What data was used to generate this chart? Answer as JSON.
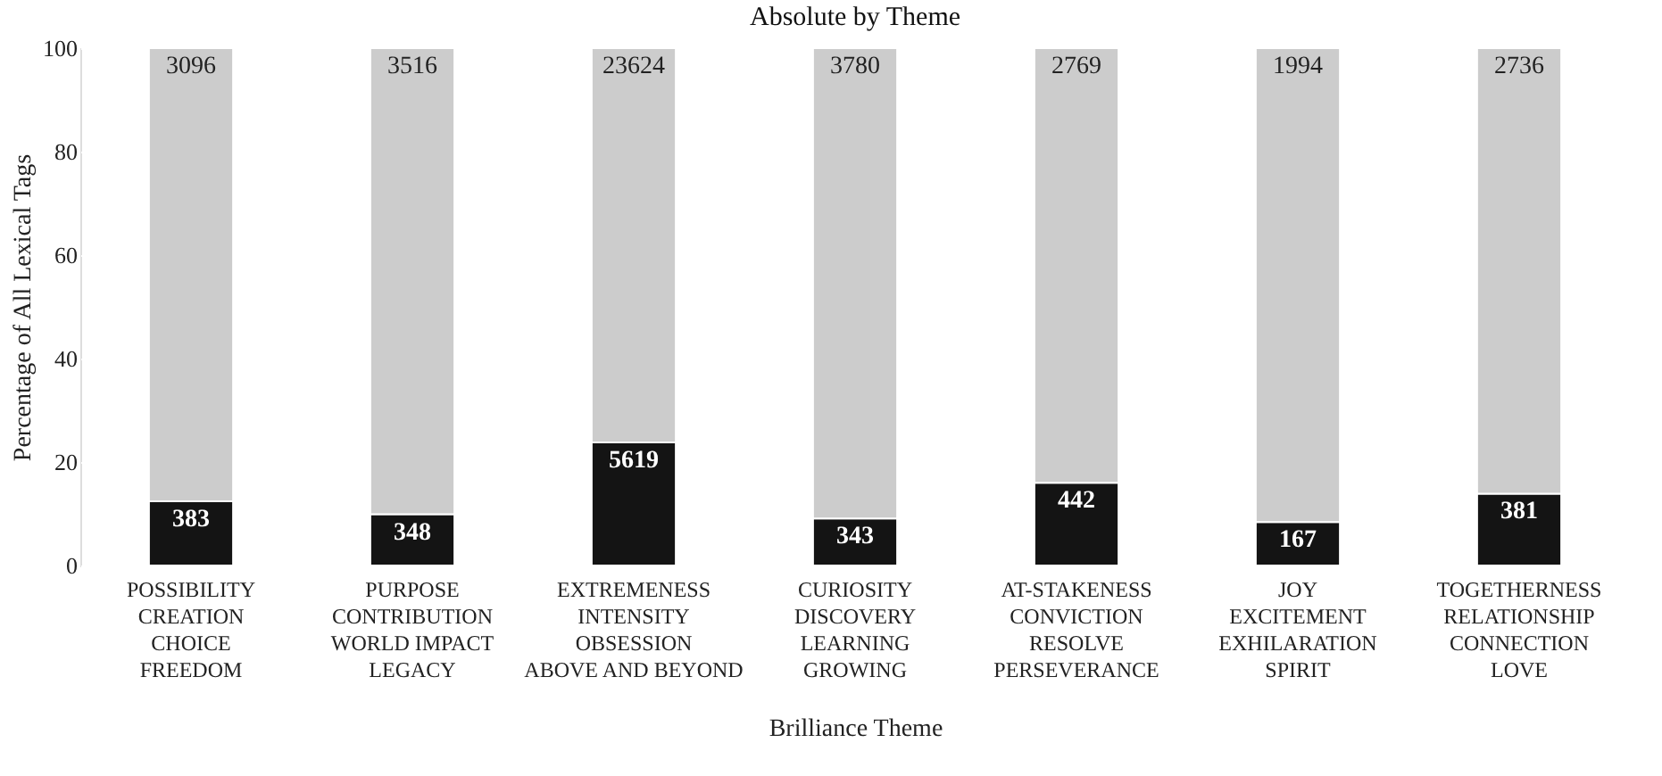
{
  "chart_data": {
    "type": "bar",
    "title": "Absolute by Theme",
    "xlabel": "Brilliance Theme",
    "ylabel": "Percentage of All Lexical Tags",
    "categories": [
      "POSSIBILITY\nCREATION\nCHOICE\nFREEDOM",
      "PURPOSE\nCONTRIBUTION\nWORLD IMPACT\nLEGACY",
      "EXTREMENESS\nINTENSITY\nOBSESSION\nABOVE AND BEYOND",
      "CURIOSITY\nDISCOVERY\nLEARNING\nGROWING",
      "AT-STAKENESS\nCONVICTION\nRESOLVE\nPERSEVERANCE",
      "JOY\nEXCITEMENT\nEXHILARATION\nSPIRIT",
      "TOGETHERNESS\nRELATIONSHIP\nCONNECTION\nLOVE"
    ],
    "stacked": true,
    "series": [
      {
        "color": "#141414",
        "values": [
          12.4,
          9.9,
          23.8,
          9.1,
          16.0,
          8.4,
          13.9
        ]
      },
      {
        "color": "#cccccc",
        "values": [
          87.6,
          90.1,
          76.2,
          90.9,
          84.0,
          91.6,
          86.1
        ]
      }
    ],
    "annotations": [
      {
        "text": "383",
        "x": "POSSIBILITY\nCREATION\nCHOICE\nFREEDOM",
        "y": 12.4
      },
      {
        "text": "348",
        "x": "PURPOSE\nCONTRIBUTION\nWORLD IMPACT\nLEGACY",
        "y": 9.9
      },
      {
        "text": "5619",
        "x": "EXTREMENESS\nINTENSITY\nOBSESSION\nABOVE AND BEYOND",
        "y": 23.8
      },
      {
        "text": "343",
        "x": "CURIOSITY\nDISCOVERY\nLEARNING\nGROWING",
        "y": 9.1
      },
      {
        "text": "442",
        "x": "AT-STAKENESS\nCONVICTION\nRESOLVE\nPERSEVERANCE",
        "y": 16.0
      },
      {
        "text": "167",
        "x": "JOY\nEXCITEMENT\nEXHILARATION\nSPIRIT",
        "y": 8.4
      },
      {
        "text": "381",
        "x": "TOGETHERNESS\nRELATIONSHIP\nCONNECTION\nLOVE",
        "y": 13.9
      },
      {
        "text": "3096",
        "x": "POSSIBILITY\nCREATION\nCHOICE\nFREEDOM",
        "y": 100
      },
      {
        "text": "3516",
        "x": "PURPOSE\nCONTRIBUTION\nWORLD IMPACT\nLEGACY",
        "y": 100
      },
      {
        "text": "23624",
        "x": "EXTREMENESS\nINTENSITY\nOBSESSION\nABOVE AND BEYOND",
        "y": 100
      },
      {
        "text": "3780",
        "x": "CURIOSITY\nDISCOVERY\nLEARNING\nGROWING",
        "y": 100
      },
      {
        "text": "2769",
        "x": "AT-STAKENESS\nCONVICTION\nRESOLVE\nPERSEVERANCE",
        "y": 100
      },
      {
        "text": "1994",
        "x": "JOY\nEXCITEMENT\nEXHILARATION\nSPIRIT",
        "y": 100
      },
      {
        "text": "2736",
        "x": "TOGETHERNESS\nRELATIONSHIP\nCONNECTION\nLOVE",
        "y": 100
      }
    ],
    "ylim": [
      0,
      100
    ],
    "yticks": [
      0,
      20,
      40,
      60,
      80,
      100
    ],
    "grid": "y"
  }
}
